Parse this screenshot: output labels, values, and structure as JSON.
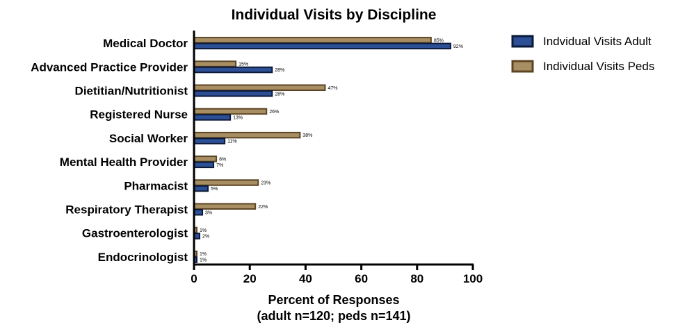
{
  "chart_data": {
    "type": "bar",
    "orientation": "horizontal",
    "title": "Individual Visits by Discipline",
    "xlabel": "Percent of Responses",
    "xlabel_sub": "(adult n=120; peds n=141)",
    "ylabel": "",
    "xlim": [
      0,
      100
    ],
    "xticks": [
      "0",
      "20",
      "40",
      "60",
      "80",
      "100"
    ],
    "grid": false,
    "legend_position": "right",
    "categories": [
      "Medical Doctor",
      "Advanced Practice Provider",
      "Dietitian/Nutritionist",
      "Registered Nurse ",
      "Social Worker",
      "Mental Health Provider",
      "Pharmacist",
      "Respiratory Therapist",
      "Gastroenterologist",
      "Endocrinologist"
    ],
    "series": [
      {
        "name": "Individual Visits Peds",
        "fill": "#a88f63",
        "stroke": "#5c4524",
        "values": [
          85,
          15,
          47,
          26,
          38,
          8,
          23,
          22,
          1,
          1
        ],
        "labels": [
          "85%",
          "15%",
          "47%",
          "26%",
          "38%",
          "8%",
          "23%",
          "22%",
          "1%",
          "1%"
        ]
      },
      {
        "name": "Indvidual Visits Adult",
        "fill": "#2c4f96",
        "stroke": "#0b1a38",
        "values": [
          92,
          28,
          28,
          13,
          11,
          7,
          5,
          3,
          2,
          1
        ],
        "labels": [
          "92%",
          "28%",
          "28%",
          "13%",
          "11%",
          "7%",
          "5%",
          "3%",
          "2%",
          "1%"
        ]
      }
    ],
    "legend": [
      {
        "label": "Indvidual Visits Adult",
        "fill": "#2c4f96",
        "stroke": "#0b1a38"
      },
      {
        "label": "Individual Visits Peds",
        "fill": "#a88f63",
        "stroke": "#5c4524"
      }
    ]
  }
}
